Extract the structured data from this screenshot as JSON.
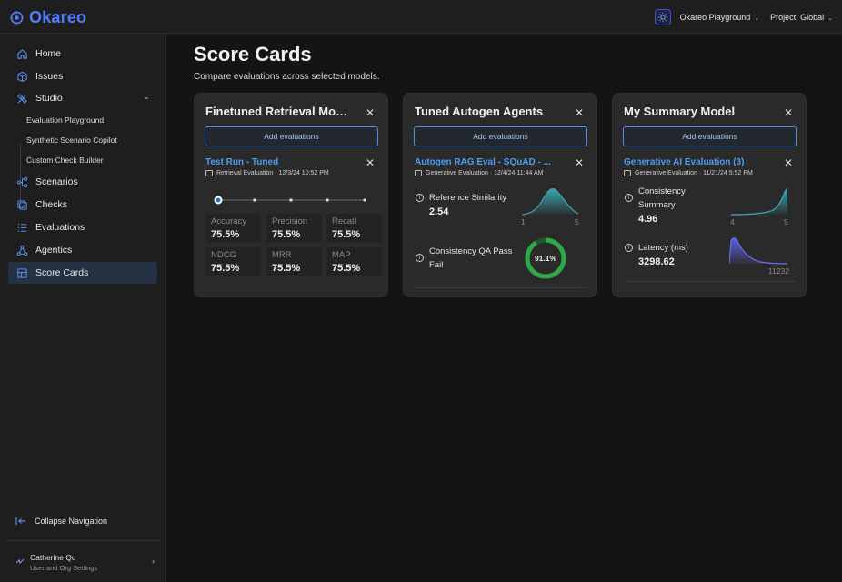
{
  "app": {
    "name": "Okareo"
  },
  "topbar": {
    "playground": "Okareo Playground",
    "project": "Project: Global"
  },
  "sidebar": {
    "items": [
      {
        "label": "Home"
      },
      {
        "label": "Issues"
      },
      {
        "label": "Studio"
      },
      {
        "label": "Scenarios"
      },
      {
        "label": "Checks"
      },
      {
        "label": "Evaluations"
      },
      {
        "label": "Agentics"
      },
      {
        "label": "Score Cards"
      }
    ],
    "studio_sub": [
      "Evaluation Playground",
      "Synthetic Scenario Copilot",
      "Custom Check Builder"
    ],
    "collapse": "Collapse Navigation",
    "user": {
      "name": "Catherine Qu",
      "sub": "User and Org Settings"
    }
  },
  "page": {
    "title": "Score Cards",
    "subtitle": "Compare evaluations across selected models."
  },
  "cards": [
    {
      "title": "Finetuned Retrieval Model",
      "add_label": "Add evaluations",
      "eval_name": "Test Run - Tuned",
      "eval_meta": "Retrieval Evaluation · 12/3/24 10:52 PM",
      "metrics": [
        {
          "label": "Accuracy",
          "value": "75.5%"
        },
        {
          "label": "Precision",
          "value": "75.5%"
        },
        {
          "label": "Recall",
          "value": "75.5%"
        },
        {
          "label": "NDCG",
          "value": "75.5%"
        },
        {
          "label": "MRR",
          "value": "75.5%"
        },
        {
          "label": "MAP",
          "value": "75.5%"
        }
      ]
    },
    {
      "title": "Tuned Autogen Agents",
      "add_label": "Add evaluations",
      "eval_name": "Autogen RAG Eval - SQuAD - ...",
      "eval_meta": "Generative Evaluation · 12/4/24 11:44 AM",
      "rows": [
        {
          "label": "Reference Similarity",
          "value": "2.54",
          "axis_min": "1",
          "axis_max": "5"
        },
        {
          "label": "Consistency QA Pass Fail",
          "donut_label": "91.1%",
          "donut_value": 0.911
        }
      ]
    },
    {
      "title": "My Summary Model",
      "add_label": "Add evaluations",
      "eval_name": "Generative AI Evaluation (3)",
      "eval_meta": "Generative Evaluation · 11/21/24 5:52 PM",
      "rows": [
        {
          "label": "Consistency Summary",
          "value": "4.96",
          "axis_min": "4",
          "axis_max": "5"
        },
        {
          "label": "Latency (ms)",
          "value": "3298.62",
          "axis_max": "11232"
        }
      ]
    }
  ],
  "colors": {
    "accent": "#4b9ef2",
    "teal": "#3aa6b0",
    "green": "#2ea84a",
    "purple": "#5a5fe0"
  }
}
